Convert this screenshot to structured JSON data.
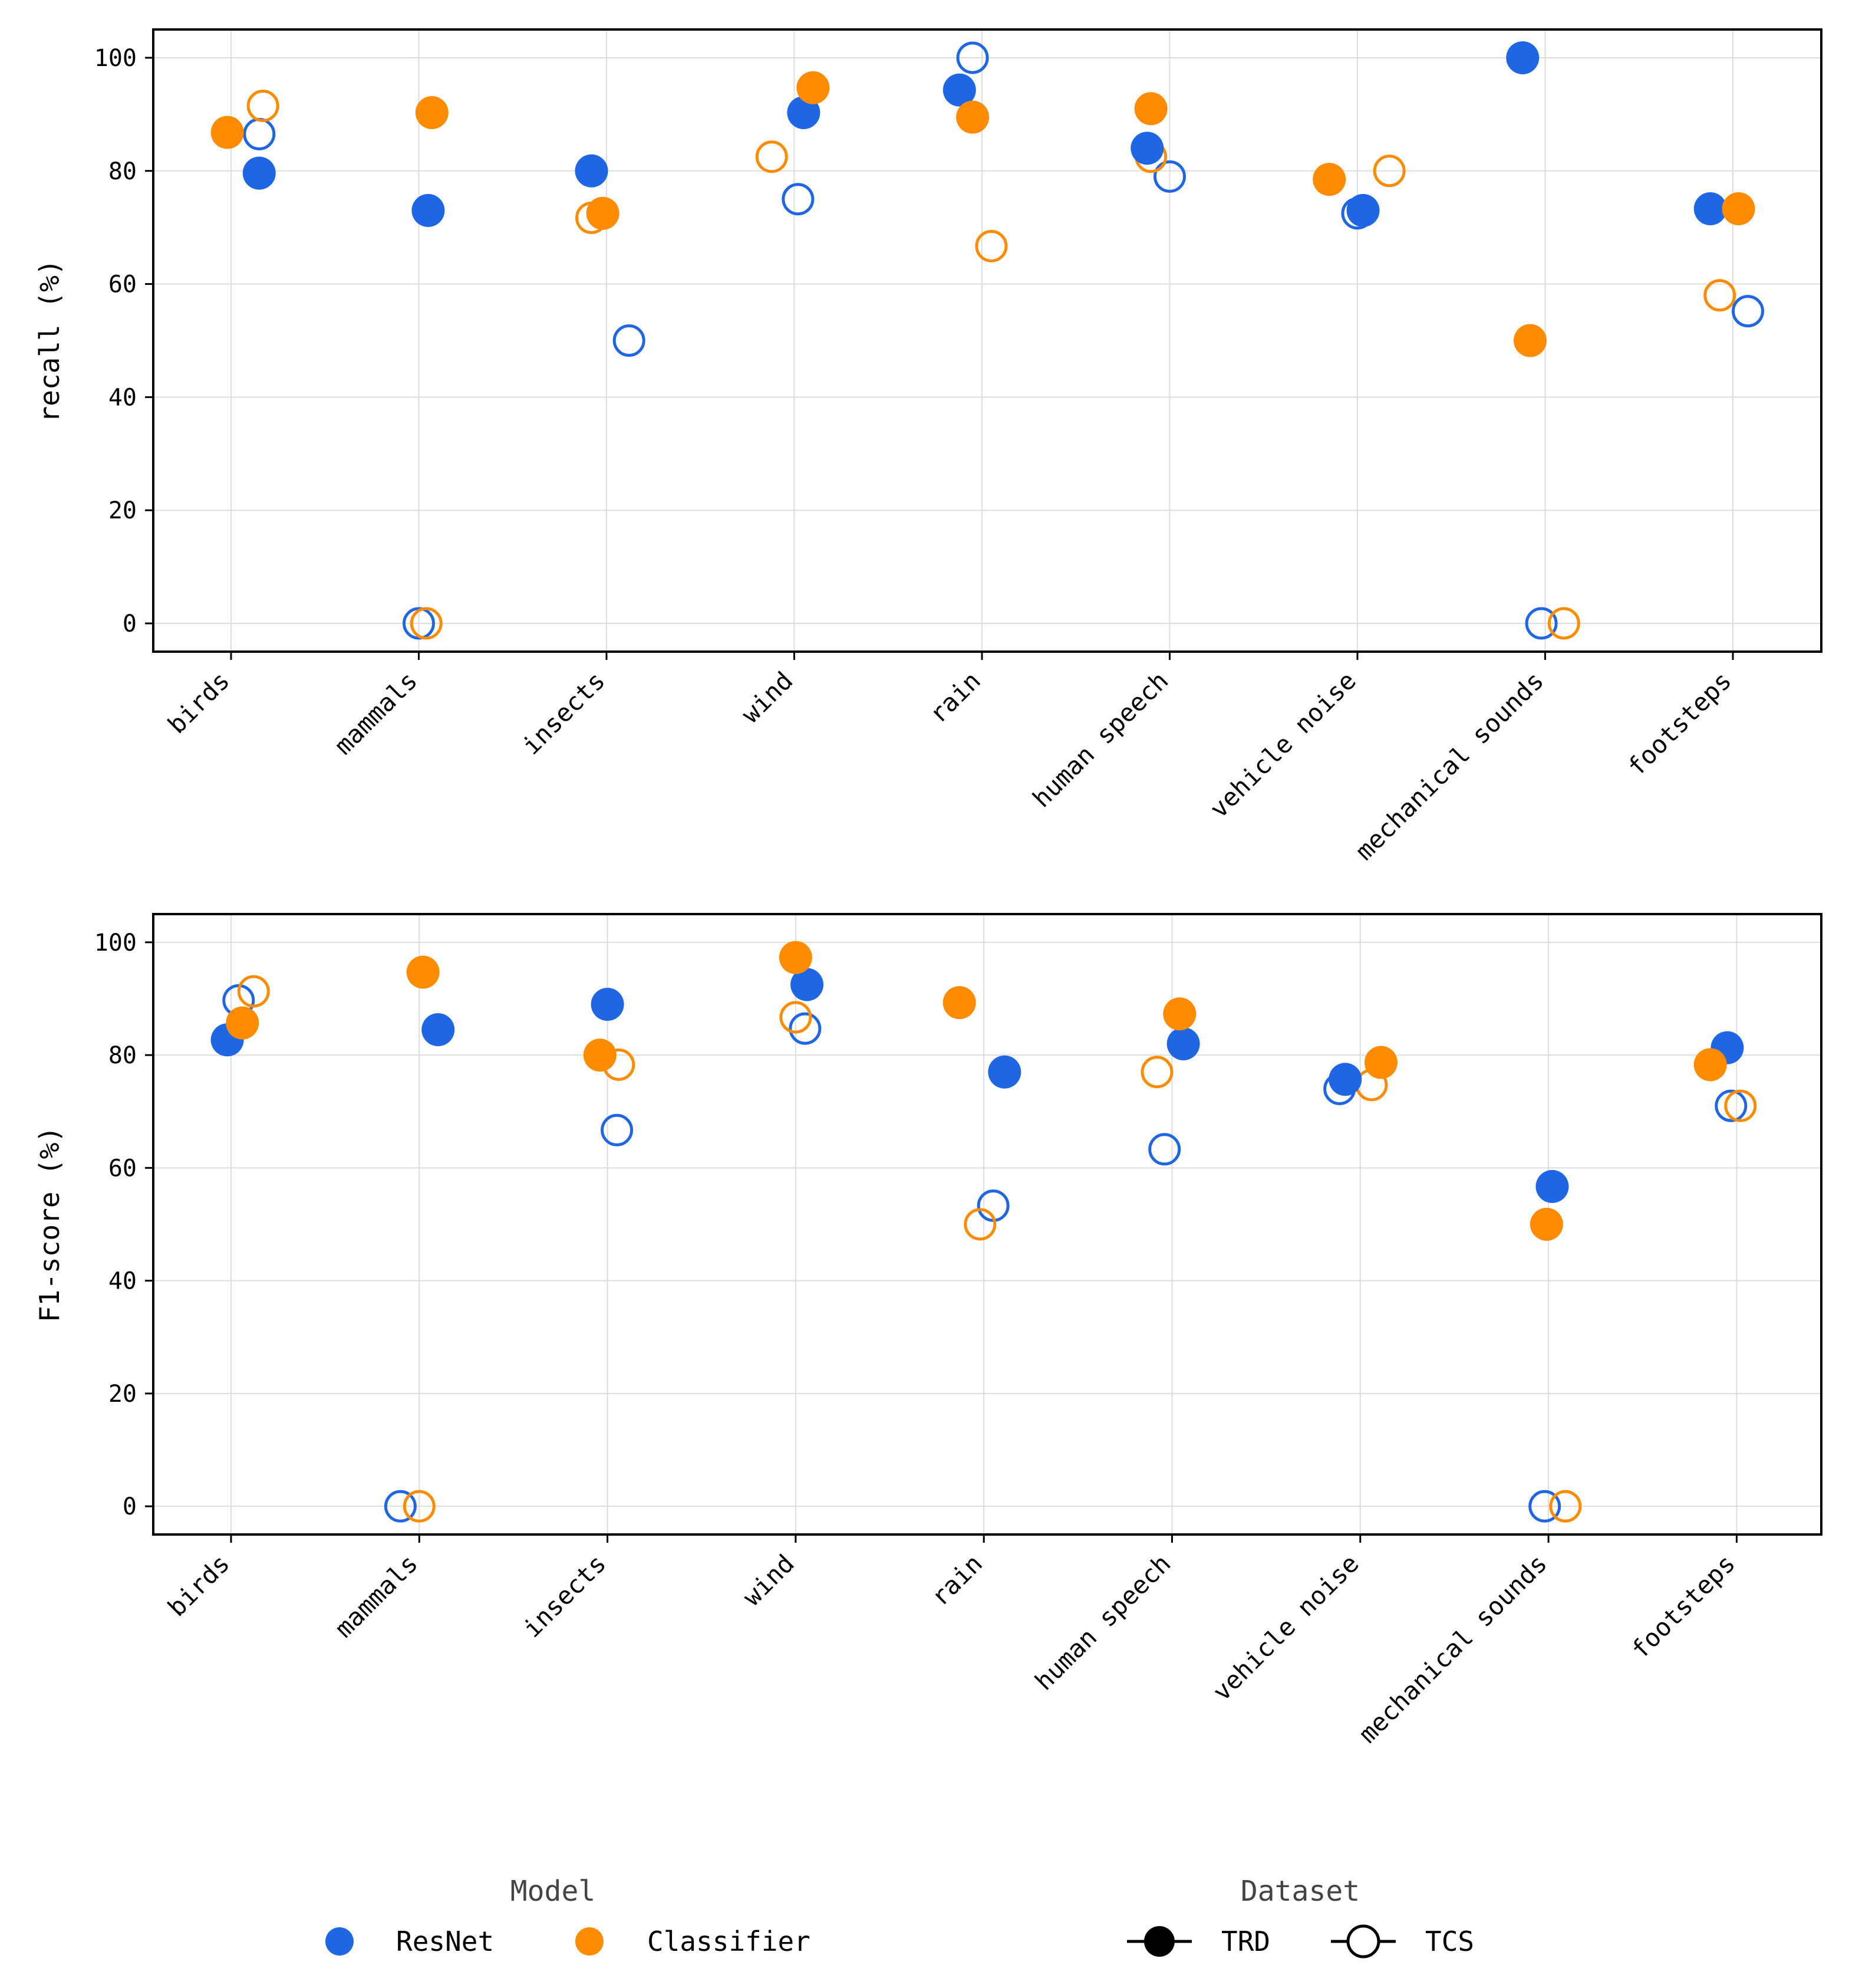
{
  "chart_data": [
    {
      "type": "scatter",
      "ylabel": "recall (%)",
      "xlabel": "",
      "ylim": [
        -5,
        105
      ],
      "yticks": [
        0,
        20,
        40,
        60,
        80,
        100
      ],
      "grid": true,
      "categories": [
        "birds",
        "mammals",
        "insects",
        "wind",
        "rain",
        "human speech",
        "vehicle noise",
        "mechanical sounds",
        "footsteps"
      ],
      "series": [
        {
          "name": "ResNet TRD",
          "model": "ResNet",
          "dataset": "TRD",
          "values": [
            79.6,
            73.0,
            80.0,
            90.3,
            94.3,
            84.0,
            73.0,
            100.0,
            73.3
          ],
          "offsets": [
            0.15,
            0.05,
            -0.08,
            0.05,
            -0.12,
            -0.12,
            0.03,
            -0.12,
            -0.12
          ]
        },
        {
          "name": "ResNet TCS",
          "model": "ResNet",
          "dataset": "TCS",
          "values": [
            86.5,
            0.0,
            50.0,
            75.0,
            100.0,
            79.0,
            72.5,
            0.0,
            55.2
          ],
          "offsets": [
            0.15,
            0.0,
            0.12,
            0.02,
            -0.05,
            0.0,
            0.0,
            -0.02,
            0.08
          ]
        },
        {
          "name": "Classifier TRD",
          "model": "Classifier",
          "dataset": "TRD",
          "values": [
            86.8,
            90.3,
            72.5,
            94.7,
            89.5,
            91.0,
            78.5,
            50.0,
            73.3
          ],
          "offsets": [
            -0.02,
            0.07,
            -0.02,
            0.1,
            -0.05,
            -0.1,
            -0.15,
            -0.08,
            0.03
          ]
        },
        {
          "name": "Classifier TCS",
          "model": "Classifier",
          "dataset": "TCS",
          "values": [
            91.5,
            0.0,
            71.7,
            82.5,
            66.7,
            82.5,
            80.0,
            0.0,
            58.0
          ],
          "offsets": [
            0.17,
            0.04,
            -0.08,
            -0.12,
            0.05,
            -0.1,
            0.17,
            0.1,
            -0.07
          ]
        }
      ]
    },
    {
      "type": "scatter",
      "ylabel": "F1-score (%)",
      "xlabel": "",
      "ylim": [
        -5,
        105
      ],
      "yticks": [
        0,
        20,
        40,
        60,
        80,
        100
      ],
      "grid": true,
      "categories": [
        "birds",
        "mammals",
        "insects",
        "wind",
        "rain",
        "human speech",
        "vehicle noise",
        "mechanical sounds",
        "footsteps"
      ],
      "series": [
        {
          "name": "ResNet TRD",
          "model": "ResNet",
          "dataset": "TRD",
          "values": [
            82.7,
            84.5,
            89.0,
            92.5,
            77.0,
            82.0,
            75.7,
            56.7,
            81.3
          ],
          "offsets": [
            -0.02,
            0.1,
            0.0,
            0.06,
            0.11,
            0.06,
            -0.08,
            0.02,
            -0.05
          ]
        },
        {
          "name": "ResNet TCS",
          "model": "ResNet",
          "dataset": "TCS",
          "values": [
            89.7,
            0.0,
            66.7,
            84.7,
            53.3,
            63.3,
            74.0,
            0.0,
            71.0
          ],
          "offsets": [
            0.04,
            -0.1,
            0.05,
            0.05,
            0.05,
            -0.04,
            -0.11,
            -0.02,
            -0.03
          ]
        },
        {
          "name": "Classifier TRD",
          "model": "Classifier",
          "dataset": "TRD",
          "values": [
            85.7,
            94.7,
            80.0,
            97.3,
            89.3,
            87.3,
            78.7,
            50.0,
            78.3
          ],
          "offsets": [
            0.06,
            0.02,
            -0.04,
            0.0,
            -0.13,
            0.04,
            0.11,
            -0.01,
            -0.14
          ]
        },
        {
          "name": "Classifier TCS",
          "model": "Classifier",
          "dataset": "TCS",
          "values": [
            91.3,
            0.0,
            78.3,
            86.7,
            50.0,
            77.0,
            74.7,
            0.0,
            71.0
          ],
          "offsets": [
            0.12,
            0.0,
            0.06,
            0.0,
            -0.02,
            -0.08,
            0.06,
            0.09,
            0.02
          ]
        }
      ]
    }
  ],
  "legend": {
    "model_title": "Model",
    "models": [
      {
        "label": "ResNet",
        "color": "#1f66e5"
      },
      {
        "label": "Classifier",
        "color": "#ff8c00"
      }
    ],
    "dataset_title": "Dataset",
    "datasets": [
      {
        "label": "TRD",
        "marker": "filled"
      },
      {
        "label": "TCS",
        "marker": "hollow"
      }
    ]
  },
  "colors": {
    "ResNet": "#1f66e5",
    "Classifier": "#ff8c00",
    "grid": "#dddddd",
    "axis": "#000000"
  }
}
